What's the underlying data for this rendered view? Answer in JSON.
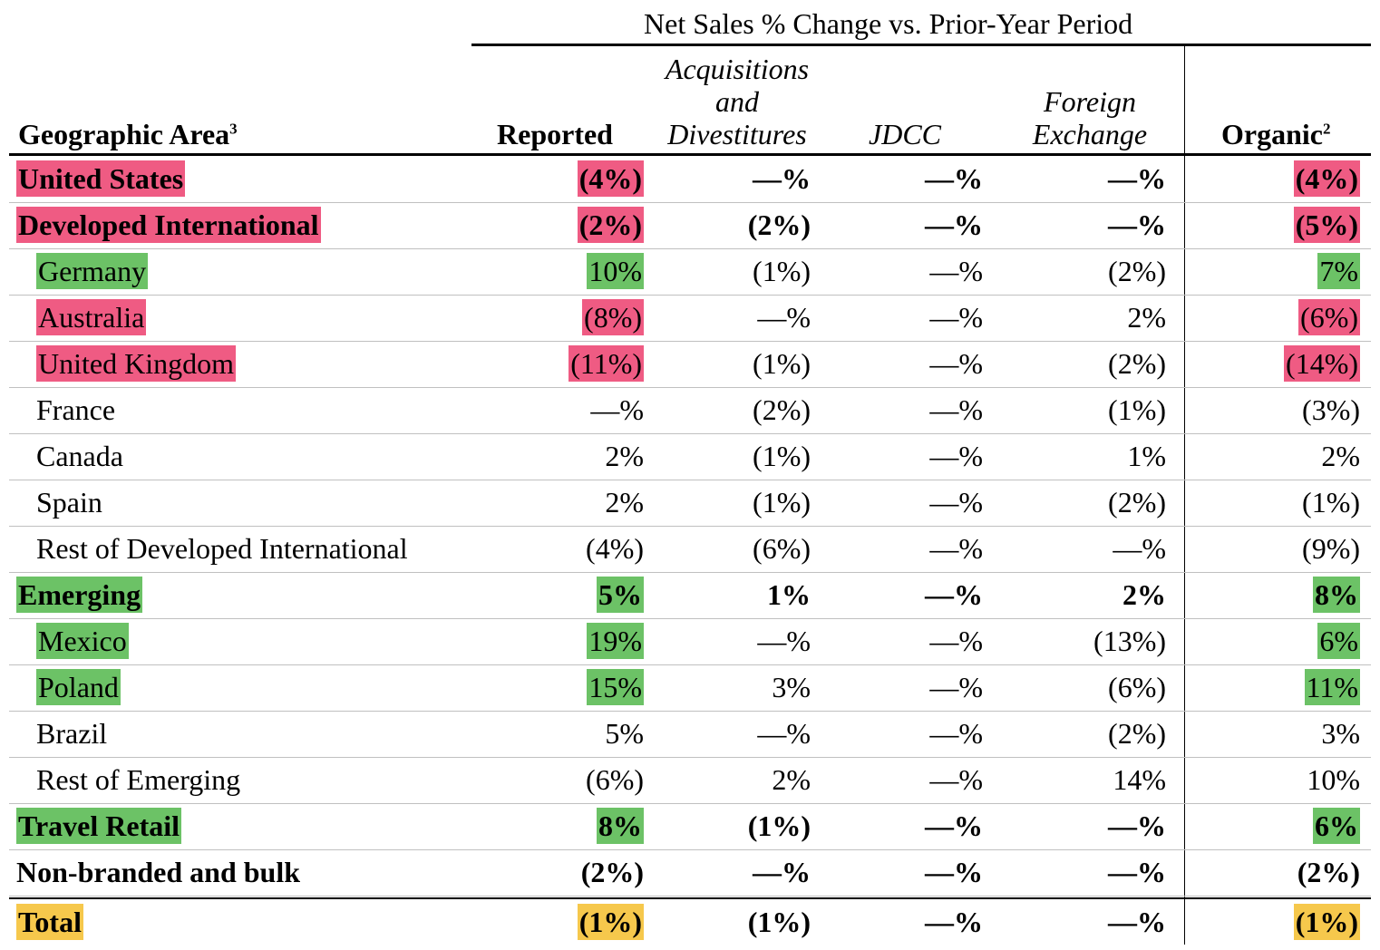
{
  "header": {
    "super_title": "Net Sales % Change vs. Prior-Year Period",
    "geo": "Geographic Area",
    "geo_sup": "3",
    "reported": "Reported",
    "acq_line1": "Acquisitions",
    "acq_line2": "and",
    "acq_line3": "Divestitures",
    "jdcc": "JDCC",
    "fx_line1": "Foreign",
    "fx_line2": "Exchange",
    "organic": "Organic",
    "organic_sup": "2"
  },
  "rows": [
    {
      "label": "United States",
      "reported": "(4%)",
      "acq": "—%",
      "jdcc": "—%",
      "fx": "—%",
      "organic": "(4%)"
    },
    {
      "label": "Developed International",
      "reported": "(2%)",
      "acq": "(2%)",
      "jdcc": "—%",
      "fx": "—%",
      "organic": "(5%)"
    },
    {
      "label": "Germany",
      "reported": "10%",
      "acq": "(1%)",
      "jdcc": "—%",
      "fx": "(2%)",
      "organic": "7%"
    },
    {
      "label": "Australia",
      "reported": "(8%)",
      "acq": "—%",
      "jdcc": "—%",
      "fx": "2%",
      "organic": "(6%)"
    },
    {
      "label": "United Kingdom",
      "reported": "(11%)",
      "acq": "(1%)",
      "jdcc": "—%",
      "fx": "(2%)",
      "organic": "(14%)"
    },
    {
      "label": "France",
      "reported": "—%",
      "acq": "(2%)",
      "jdcc": "—%",
      "fx": "(1%)",
      "organic": "(3%)"
    },
    {
      "label": "Canada",
      "reported": "2%",
      "acq": "(1%)",
      "jdcc": "—%",
      "fx": "1%",
      "organic": "2%"
    },
    {
      "label": "Spain",
      "reported": "2%",
      "acq": "(1%)",
      "jdcc": "—%",
      "fx": "(2%)",
      "organic": "(1%)"
    },
    {
      "label": "Rest of Developed International",
      "reported": "(4%)",
      "acq": "(6%)",
      "jdcc": "—%",
      "fx": "—%",
      "organic": "(9%)"
    },
    {
      "label": "Emerging",
      "reported": "5%",
      "acq": "1%",
      "jdcc": "—%",
      "fx": "2%",
      "organic": "8%"
    },
    {
      "label": "Mexico",
      "reported": "19%",
      "acq": "—%",
      "jdcc": "—%",
      "fx": "(13%)",
      "organic": "6%"
    },
    {
      "label": "Poland",
      "reported": "15%",
      "acq": "3%",
      "jdcc": "—%",
      "fx": "(6%)",
      "organic": "11%"
    },
    {
      "label": "Brazil",
      "reported": "5%",
      "acq": "—%",
      "jdcc": "—%",
      "fx": "(2%)",
      "organic": "3%"
    },
    {
      "label": "Rest of Emerging",
      "reported": "(6%)",
      "acq": "2%",
      "jdcc": "—%",
      "fx": "14%",
      "organic": "10%"
    },
    {
      "label": "Travel Retail",
      "reported": "8%",
      "acq": "(1%)",
      "jdcc": "—%",
      "fx": "—%",
      "organic": "6%"
    },
    {
      "label": "Non-branded and bulk",
      "reported": "(2%)",
      "acq": "—%",
      "jdcc": "—%",
      "fx": "—%",
      "organic": "(2%)"
    },
    {
      "label": "Total",
      "reported": "(1%)",
      "acq": "(1%)",
      "jdcc": "—%",
      "fx": "—%",
      "organic": "(1%)"
    }
  ],
  "colors": {
    "red": "#ef5b83",
    "green": "#6cc266",
    "gold": "#f6c84c"
  }
}
